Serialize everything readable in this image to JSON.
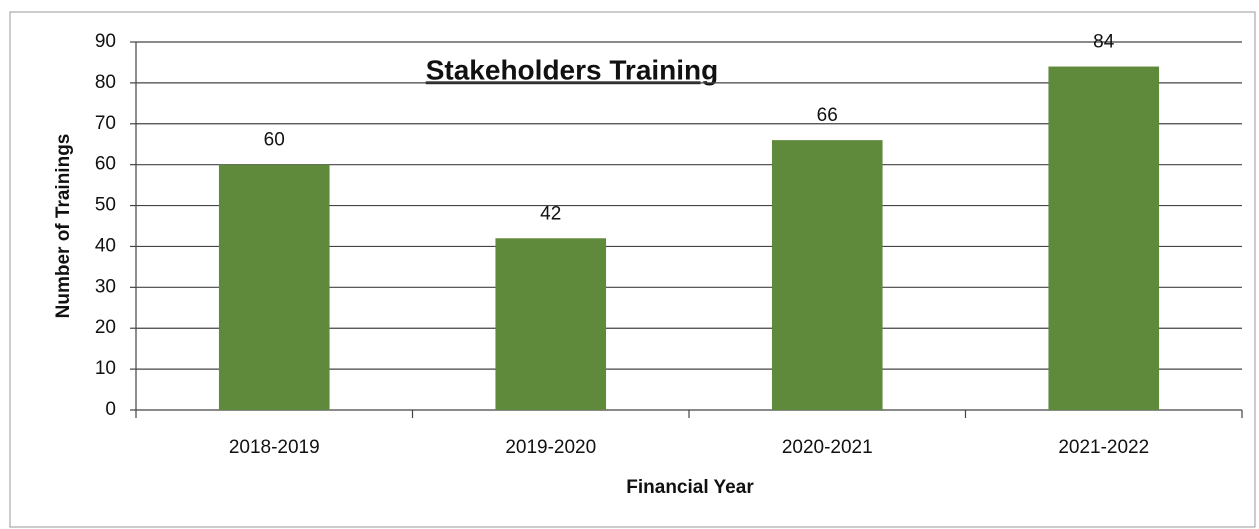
{
  "chart_data": {
    "type": "bar",
    "title": "Stakeholders Training",
    "x_label": "Financial Year",
    "y_label": "Number of Trainings",
    "categories": [
      "2018-2019",
      "2019-2020",
      "2020-2021",
      "2021-2022"
    ],
    "values": [
      60,
      42,
      66,
      84
    ],
    "color": "#5f8a3c",
    "ylim": [
      0,
      90
    ],
    "yticks": [
      0,
      10,
      20,
      30,
      40,
      50,
      60,
      70,
      80,
      90
    ],
    "grid": true
  }
}
